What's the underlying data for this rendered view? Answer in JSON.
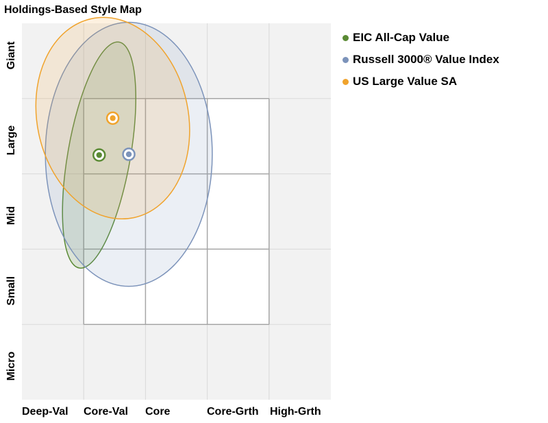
{
  "chart_data": {
    "type": "scatter",
    "title": "Holdings-Based Style Map",
    "x_categories": [
      "Deep-Val",
      "Core-Val",
      "Core",
      "Core-Grth",
      "High-Grth"
    ],
    "y_categories": [
      "Micro",
      "Small",
      "Mid",
      "Large",
      "Giant"
    ],
    "grid": true,
    "legend_position": "top-right",
    "series": [
      {
        "name": "EIC All-Cap Value",
        "color": "#5a8a34",
        "centroid": {
          "x": 1.25,
          "y": 3.25
        },
        "ellipse": {
          "rx": 1.15,
          "ry": 2.65,
          "rotation": 10
        }
      },
      {
        "name": "Russell 3000® Value Index",
        "color": "#7c93ba",
        "centroid": {
          "x": 1.73,
          "y": 3.26
        },
        "ellipse": {
          "rx": 3.07,
          "ry": 3.05,
          "rotation": 0
        }
      },
      {
        "name": "US Large Value SA",
        "color": "#f0a32c",
        "centroid": {
          "x": 1.47,
          "y": 3.74
        },
        "ellipse": {
          "rx": 2.78,
          "ry": 2.35,
          "rotation": -12
        }
      }
    ]
  }
}
